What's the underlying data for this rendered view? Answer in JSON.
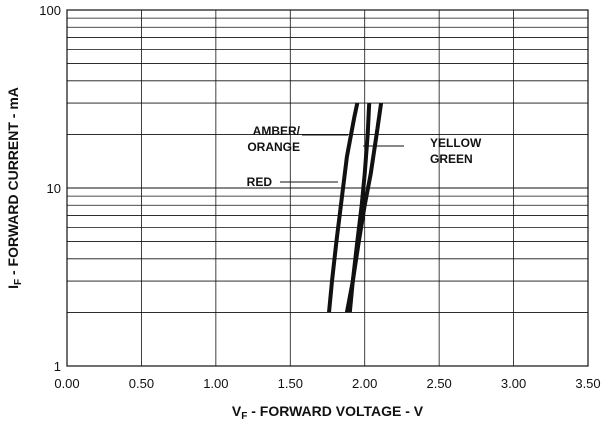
{
  "chart_data": {
    "type": "line",
    "xlabel_main": "V",
    "xlabel_sub": "F",
    "xlabel_rest": " - FORWARD VOLTAGE - V",
    "ylabel_main": "I",
    "ylabel_sub": "F",
    "ylabel_rest": " - FORWARD CURRENT - mA",
    "xlim": [
      0,
      3.5
    ],
    "ylim": [
      1,
      100
    ],
    "y_scale": "log",
    "grid": true,
    "x_ticks": [
      "0.00",
      "0.50",
      "1.00",
      "1.50",
      "2.00",
      "2.50",
      "3.00",
      "3.50"
    ],
    "y_ticks": [
      "1",
      "10",
      "100"
    ],
    "series": [
      {
        "name": "AMBER/ORANGE",
        "points": [
          [
            1.88,
            2
          ],
          [
            1.92,
            3
          ],
          [
            1.95,
            5
          ],
          [
            1.98,
            8
          ],
          [
            2.0,
            12
          ],
          [
            2.02,
            20
          ],
          [
            2.03,
            30
          ]
        ]
      },
      {
        "name": "RED",
        "points": [
          [
            1.76,
            2
          ],
          [
            1.78,
            3
          ],
          [
            1.81,
            5
          ],
          [
            1.84,
            8
          ],
          [
            1.88,
            15
          ],
          [
            1.93,
            25
          ],
          [
            1.95,
            30
          ]
        ]
      },
      {
        "name": "YELLOW GREEN",
        "points": [
          [
            1.9,
            2
          ],
          [
            1.92,
            3
          ],
          [
            1.96,
            5
          ],
          [
            2.0,
            8
          ],
          [
            2.04,
            12
          ],
          [
            2.08,
            20
          ],
          [
            2.11,
            30
          ]
        ]
      }
    ],
    "annotations": [
      {
        "lines": [
          "AMBER/",
          "ORANGE"
        ],
        "target_series": "AMBER/ORANGE"
      },
      {
        "lines": [
          "RED"
        ],
        "target_series": "RED"
      },
      {
        "lines": [
          "YELLOW",
          "GREEN"
        ],
        "target_series": "YELLOW GREEN"
      }
    ],
    "line_color": "#111111",
    "grid_color": "#111111"
  }
}
